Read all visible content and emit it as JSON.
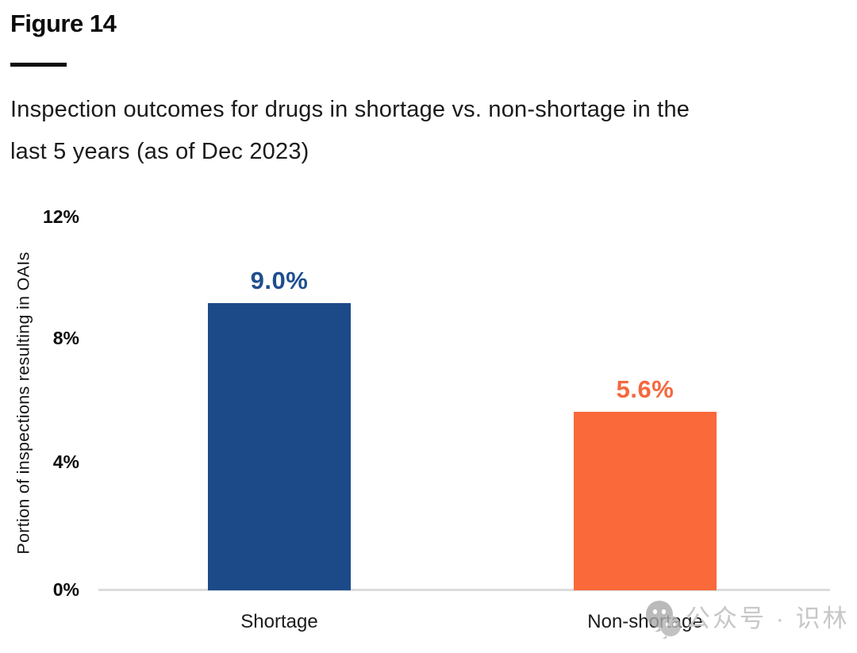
{
  "figure": {
    "label": "Figure 14",
    "title_line1": "Inspection outcomes for drugs in shortage vs. non-shortage in the",
    "title_line2": "last 5 years (as of Dec 2023)"
  },
  "chart_data": {
    "type": "bar",
    "title": "Inspection outcomes for drugs in shortage vs. non-shortage in the last 5 years (as of Dec 2023)",
    "categories": [
      "Shortage",
      "Non-shortage"
    ],
    "values": [
      9.0,
      5.6
    ],
    "value_labels": [
      "9.0%",
      "5.6%"
    ],
    "bar_colors": [
      "#1c4a89",
      "#f9693a"
    ],
    "value_label_colors": [
      "#1f4e8e",
      "#f4683e"
    ],
    "ylabel": "Portion of inspections resulting in OAIs",
    "xlabel": "",
    "ylim": [
      0,
      12
    ],
    "yticks": [
      "12%",
      "8%",
      "4%",
      "0%"
    ],
    "grid": false,
    "legend": false,
    "axis_line_color": "#dcdcdc"
  },
  "watermark": {
    "icon": "wechat-logo-icon",
    "text": "公众号 · 识林"
  }
}
